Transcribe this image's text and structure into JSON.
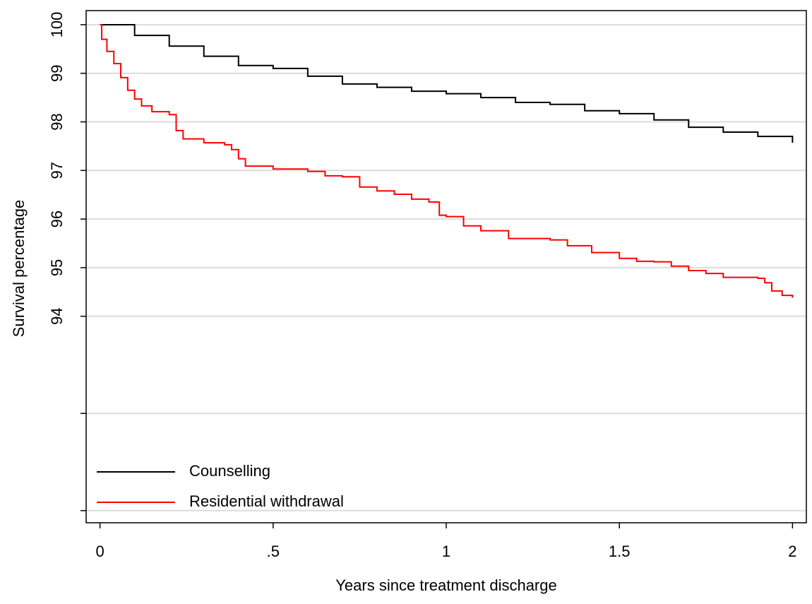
{
  "chart_data": {
    "type": "line",
    "step": true,
    "x_label": "Years since treatment discharge",
    "y_label": "Survival percentage",
    "xlim": [
      -0.04,
      2.04
    ],
    "ylim": [
      89.75,
      100.29
    ],
    "xticks": [
      0,
      {
        "value": 0.5,
        "label": ".5"
      },
      1,
      1.5,
      2
    ],
    "yticks": [
      {
        "value": 90,
        "label": null
      },
      {
        "value": 92,
        "label": null
      },
      94,
      95,
      96,
      97,
      98,
      99,
      100
    ],
    "grid": true,
    "legend": "lower left",
    "series": [
      {
        "name": "Counselling",
        "color": "#000000",
        "x": [
          0,
          0.1,
          0.2,
          0.3,
          0.4,
          0.5,
          0.6,
          0.7,
          0.8,
          0.9,
          1.0,
          1.1,
          1.2,
          1.3,
          1.4,
          1.5,
          1.6,
          1.7,
          1.8,
          1.9,
          2.0
        ],
        "values": [
          100,
          99.78,
          99.56,
          99.35,
          99.16,
          99.1,
          98.94,
          98.78,
          98.71,
          98.63,
          98.58,
          98.5,
          98.4,
          98.36,
          98.23,
          98.17,
          98.04,
          97.89,
          97.79,
          97.7,
          97.57
        ]
      },
      {
        "name": "Residential withdrawal",
        "color": "#ff0000",
        "x": [
          0,
          0.005,
          0.02,
          0.04,
          0.06,
          0.08,
          0.1,
          0.12,
          0.15,
          0.2,
          0.22,
          0.24,
          0.3,
          0.36,
          0.38,
          0.4,
          0.42,
          0.5,
          0.6,
          0.65,
          0.7,
          0.75,
          0.8,
          0.85,
          0.9,
          0.95,
          0.98,
          1.0,
          1.05,
          1.1,
          1.18,
          1.3,
          1.35,
          1.42,
          1.5,
          1.55,
          1.6,
          1.65,
          1.7,
          1.75,
          1.8,
          1.9,
          1.92,
          1.94,
          1.97,
          2.0
        ],
        "values": [
          100,
          99.7,
          99.45,
          99.2,
          98.91,
          98.65,
          98.47,
          98.33,
          98.21,
          98.15,
          97.82,
          97.65,
          97.57,
          97.53,
          97.43,
          97.24,
          97.09,
          97.03,
          96.98,
          96.89,
          96.87,
          96.66,
          96.58,
          96.51,
          96.41,
          96.35,
          96.08,
          96.05,
          95.86,
          95.76,
          95.6,
          95.57,
          95.45,
          95.31,
          95.19,
          95.13,
          95.12,
          95.03,
          94.94,
          94.88,
          94.8,
          94.78,
          94.69,
          94.52,
          94.43,
          94.38
        ]
      }
    ]
  }
}
